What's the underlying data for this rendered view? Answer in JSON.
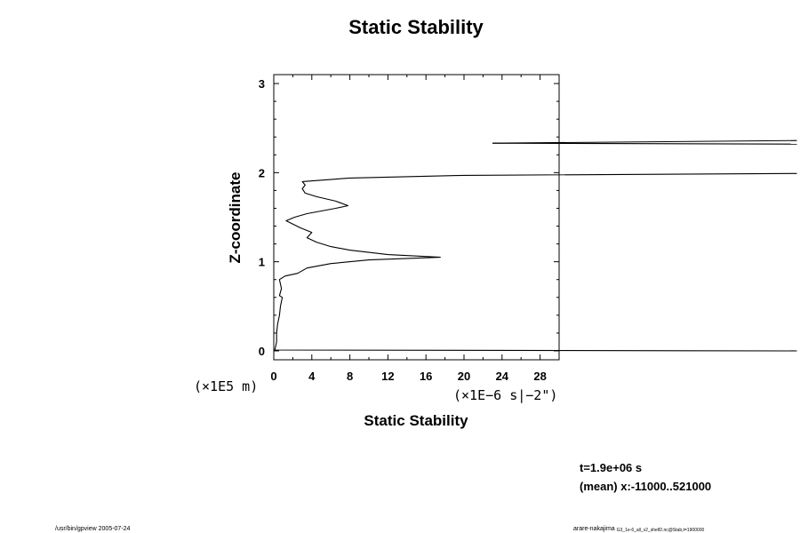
{
  "chart_data": {
    "type": "line",
    "title": "Static Stability",
    "xlabel": "Static Stability",
    "ylabel": "Z-coordinate",
    "x_unit": "(×1E−6 s|−2\")",
    "y_unit": "(×1E5  m)",
    "xlim": [
      0,
      30
    ],
    "ylim": [
      -0.1,
      3.1
    ],
    "x_ticks": [
      "0",
      "4",
      "8",
      "12",
      "16",
      "20",
      "24",
      "28"
    ],
    "y_ticks": [
      "0",
      "1",
      "2",
      "3"
    ],
    "grid": false,
    "series": [
      {
        "points": [
          [
            55,
            0.0
          ],
          [
            0.1,
            0.01
          ],
          [
            0.2,
            0.05
          ],
          [
            0.3,
            0.1
          ],
          [
            0.3,
            0.2
          ],
          [
            0.4,
            0.3
          ],
          [
            0.6,
            0.4
          ],
          [
            0.7,
            0.5
          ],
          [
            0.9,
            0.6
          ],
          [
            0.6,
            0.62
          ],
          [
            0.8,
            0.7
          ],
          [
            0.6,
            0.8
          ],
          [
            1.2,
            0.84
          ],
          [
            2.5,
            0.87
          ],
          [
            3.5,
            0.93
          ],
          [
            6,
            0.98
          ],
          [
            10,
            1.02
          ],
          [
            17.5,
            1.05
          ],
          [
            12,
            1.08
          ],
          [
            8,
            1.13
          ],
          [
            6,
            1.17
          ],
          [
            4.5,
            1.22
          ],
          [
            3.5,
            1.27
          ],
          [
            4,
            1.33
          ],
          [
            2.8,
            1.38
          ],
          [
            1.3,
            1.46
          ],
          [
            2.2,
            1.5
          ],
          [
            3.5,
            1.54
          ],
          [
            5,
            1.57
          ],
          [
            6.5,
            1.6
          ],
          [
            7.8,
            1.63
          ],
          [
            6.5,
            1.68
          ],
          [
            4.5,
            1.73
          ],
          [
            3.3,
            1.77
          ],
          [
            3,
            1.82
          ],
          [
            3.3,
            1.86
          ],
          [
            3,
            1.9
          ],
          [
            8,
            1.94
          ],
          [
            20,
            1.97
          ],
          [
            55,
            1.99
          ]
        ]
      },
      {
        "points": [
          [
            23,
            2.33
          ],
          [
            55,
            2.36
          ]
        ]
      },
      {
        "points": [
          [
            23,
            2.33
          ],
          [
            55,
            2.32
          ]
        ]
      }
    ],
    "time_label": "t=1.9e+06 s",
    "mean_label": "(mean) x:-11000..521000"
  },
  "footer": {
    "left": "/usr/bin/gpview 2005-07-24",
    "right_main": "arare-nakajima",
    "right_sub": "G3_1e-6_all_v2_shelf2.nc@Stab,t=1900000"
  },
  "colors": {
    "line": "#000000",
    "background": "#ffffff"
  }
}
